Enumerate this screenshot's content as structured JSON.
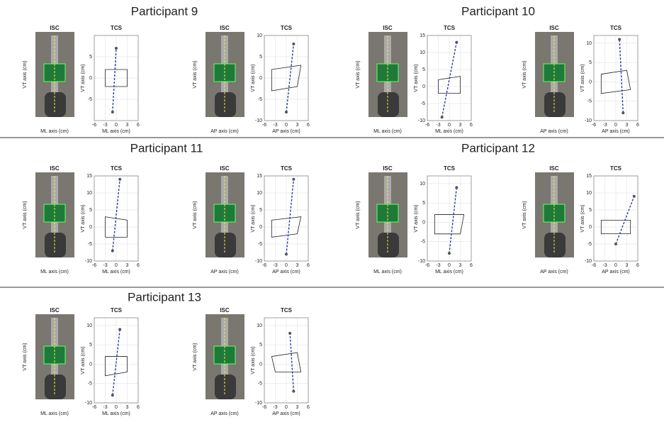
{
  "participants": [
    {
      "title": "Participant 9",
      "panels": [
        {
          "isc_title": "ISC",
          "isc_ylabel": "VT axis (cm)",
          "isc_xlabel": "ML axis (cm)",
          "tcs_title": "TCS",
          "tcs_ylabel": "VT axis (cm)",
          "tcs_xlabel": "ML axis (cm)",
          "xlim": [
            -6,
            6
          ],
          "ylim": [
            -10,
            10
          ],
          "xticks": [
            -6,
            -3,
            0,
            3,
            6
          ],
          "yticks": [
            -5,
            0,
            5
          ],
          "top": [
            0,
            7
          ],
          "bottom": [
            -1,
            -8
          ],
          "quad": [
            [
              -3,
              2
            ],
            [
              3,
              2
            ],
            [
              3,
              -2
            ],
            [
              -3,
              -2
            ]
          ]
        },
        {
          "isc_title": "ISC",
          "isc_ylabel": "VT axis (cm)",
          "isc_xlabel": "AP axis (cm)",
          "tcs_title": "TCS",
          "tcs_ylabel": "VT axis (cm)",
          "tcs_xlabel": "AP axis (cm)",
          "xlim": [
            -6,
            6
          ],
          "ylim": [
            -10,
            10
          ],
          "xticks": [
            -6,
            -3,
            0,
            3,
            6
          ],
          "yticks": [
            -10,
            -5,
            0,
            5,
            10
          ],
          "top": [
            2,
            8
          ],
          "bottom": [
            0,
            -8
          ],
          "quad": [
            [
              -4,
              2
            ],
            [
              4,
              3
            ],
            [
              3,
              -2
            ],
            [
              -4,
              -3
            ]
          ]
        }
      ]
    },
    {
      "title": "Participant 10",
      "panels": [
        {
          "isc_title": "ISC",
          "isc_ylabel": "VT axis (cm)",
          "isc_xlabel": "ML axis (cm)",
          "tcs_title": "TCS",
          "tcs_ylabel": "VT axis (cm)",
          "tcs_xlabel": "ML axis (cm)",
          "xlim": [
            -6,
            6
          ],
          "ylim": [
            -10,
            15
          ],
          "xticks": [
            -6,
            -3,
            0,
            3,
            6
          ],
          "yticks": [
            -10,
            -5,
            0,
            5,
            10,
            15
          ],
          "top": [
            2,
            13
          ],
          "bottom": [
            -2,
            -9
          ],
          "quad": [
            [
              -3,
              2
            ],
            [
              3,
              3
            ],
            [
              3,
              -2
            ],
            [
              -3,
              -2
            ]
          ]
        },
        {
          "isc_title": "ISC",
          "isc_ylabel": "VT axis (cm)",
          "isc_xlabel": "AP axis (cm)",
          "tcs_title": "TCS",
          "tcs_ylabel": "VT axis (cm)",
          "tcs_xlabel": "AP axis (cm)",
          "xlim": [
            -6,
            6
          ],
          "ylim": [
            -10,
            12
          ],
          "xticks": [
            -6,
            -3,
            0,
            3,
            6
          ],
          "yticks": [
            -10,
            -5,
            0,
            5,
            10
          ],
          "top": [
            1,
            11
          ],
          "bottom": [
            2,
            -8
          ],
          "quad": [
            [
              -4,
              2
            ],
            [
              3,
              3
            ],
            [
              4,
              -2
            ],
            [
              -4,
              -3
            ]
          ]
        }
      ]
    },
    {
      "title": "Participant 11",
      "panels": [
        {
          "isc_title": "ISC",
          "isc_ylabel": "VT axis (cm)",
          "isc_xlabel": "ML axis (cm)",
          "tcs_title": "TCS",
          "tcs_ylabel": "VT axis (cm)",
          "tcs_xlabel": "ML axis (cm)",
          "xlim": [
            -6,
            6
          ],
          "ylim": [
            -10,
            15
          ],
          "xticks": [
            -6,
            -3,
            0,
            3,
            6
          ],
          "yticks": [
            -10,
            -5,
            0,
            5,
            10,
            15
          ],
          "top": [
            1,
            14
          ],
          "bottom": [
            -1,
            -7
          ],
          "quad": [
            [
              -3,
              3
            ],
            [
              3,
              2
            ],
            [
              3,
              -3
            ],
            [
              -3,
              -3
            ]
          ]
        },
        {
          "isc_title": "ISC",
          "isc_ylabel": "VT axis (cm)",
          "isc_xlabel": "AP axis (cm)",
          "tcs_title": "TCS",
          "tcs_ylabel": "VT axis (cm)",
          "tcs_xlabel": "AP axis (cm)",
          "xlim": [
            -6,
            6
          ],
          "ylim": [
            -10,
            15
          ],
          "xticks": [
            -6,
            -3,
            0,
            3,
            6
          ],
          "yticks": [
            -10,
            -5,
            0,
            5,
            10,
            15
          ],
          "top": [
            2,
            14
          ],
          "bottom": [
            0,
            -8
          ],
          "quad": [
            [
              -4,
              2
            ],
            [
              4,
              3
            ],
            [
              3,
              -2
            ],
            [
              -4,
              -3
            ]
          ]
        }
      ]
    },
    {
      "title": "Participant 12",
      "panels": [
        {
          "isc_title": "ISC",
          "isc_ylabel": "VT axis (cm)",
          "isc_xlabel": "ML axis (cm)",
          "tcs_title": "TCS",
          "tcs_ylabel": "VT axis (cm)",
          "tcs_xlabel": "ML axis (cm)",
          "xlim": [
            -6,
            6
          ],
          "ylim": [
            -10,
            12
          ],
          "xticks": [
            -6,
            -3,
            0,
            3,
            6
          ],
          "yticks": [
            -10,
            -5,
            0,
            5,
            10
          ],
          "top": [
            2,
            9
          ],
          "bottom": [
            0,
            -8
          ],
          "quad": [
            [
              -4,
              2
            ],
            [
              4,
              2
            ],
            [
              3,
              -3
            ],
            [
              -4,
              -3
            ]
          ]
        },
        {
          "isc_title": "ISC",
          "isc_ylabel": "VT axis (cm)",
          "isc_xlabel": "AP axis (cm)",
          "tcs_title": "TCS",
          "tcs_ylabel": "VT axis (cm)",
          "tcs_xlabel": "AP axis (cm)",
          "xlim": [
            -6,
            6
          ],
          "ylim": [
            -10,
            15
          ],
          "xticks": [
            -6,
            -3,
            0,
            3,
            6
          ],
          "yticks": [
            -10,
            -5,
            0,
            5,
            10,
            15
          ],
          "top": [
            5,
            9
          ],
          "bottom": [
            0,
            -5
          ],
          "quad": [
            [
              -4,
              2
            ],
            [
              4,
              2
            ],
            [
              4,
              -2
            ],
            [
              -4,
              -2
            ]
          ]
        }
      ]
    },
    {
      "title": "Participant 13",
      "panels": [
        {
          "isc_title": "ISC",
          "isc_ylabel": "VT axis (cm)",
          "isc_xlabel": "ML axis (cm)",
          "tcs_title": "TCS",
          "tcs_ylabel": "VT axis (cm)",
          "tcs_xlabel": "ML axis (cm)",
          "xlim": [
            -6,
            6
          ],
          "ylim": [
            -10,
            12
          ],
          "xticks": [
            -6,
            -3,
            0,
            3,
            6
          ],
          "yticks": [
            -10,
            -5,
            0,
            5,
            10
          ],
          "top": [
            1,
            9
          ],
          "bottom": [
            -1,
            -8
          ],
          "quad": [
            [
              -3,
              2
            ],
            [
              3,
              2
            ],
            [
              3,
              -2
            ],
            [
              -3,
              -3
            ]
          ]
        },
        {
          "isc_title": "ISC",
          "isc_ylabel": "VT axis (cm)",
          "isc_xlabel": "AP axis (cm)",
          "tcs_title": "TCS",
          "tcs_ylabel": "VT axis (cm)",
          "tcs_xlabel": "AP axis (cm)",
          "xlim": [
            -6,
            6
          ],
          "ylim": [
            -10,
            12
          ],
          "xticks": [
            -6,
            -3,
            0,
            3,
            6
          ],
          "yticks": [
            -10,
            -5,
            0,
            5,
            10
          ],
          "top": [
            1,
            8
          ],
          "bottom": [
            2,
            -7
          ],
          "quad": [
            [
              -4,
              2
            ],
            [
              3,
              3
            ],
            [
              4,
              -2
            ],
            [
              -3,
              -2
            ]
          ]
        }
      ]
    }
  ]
}
